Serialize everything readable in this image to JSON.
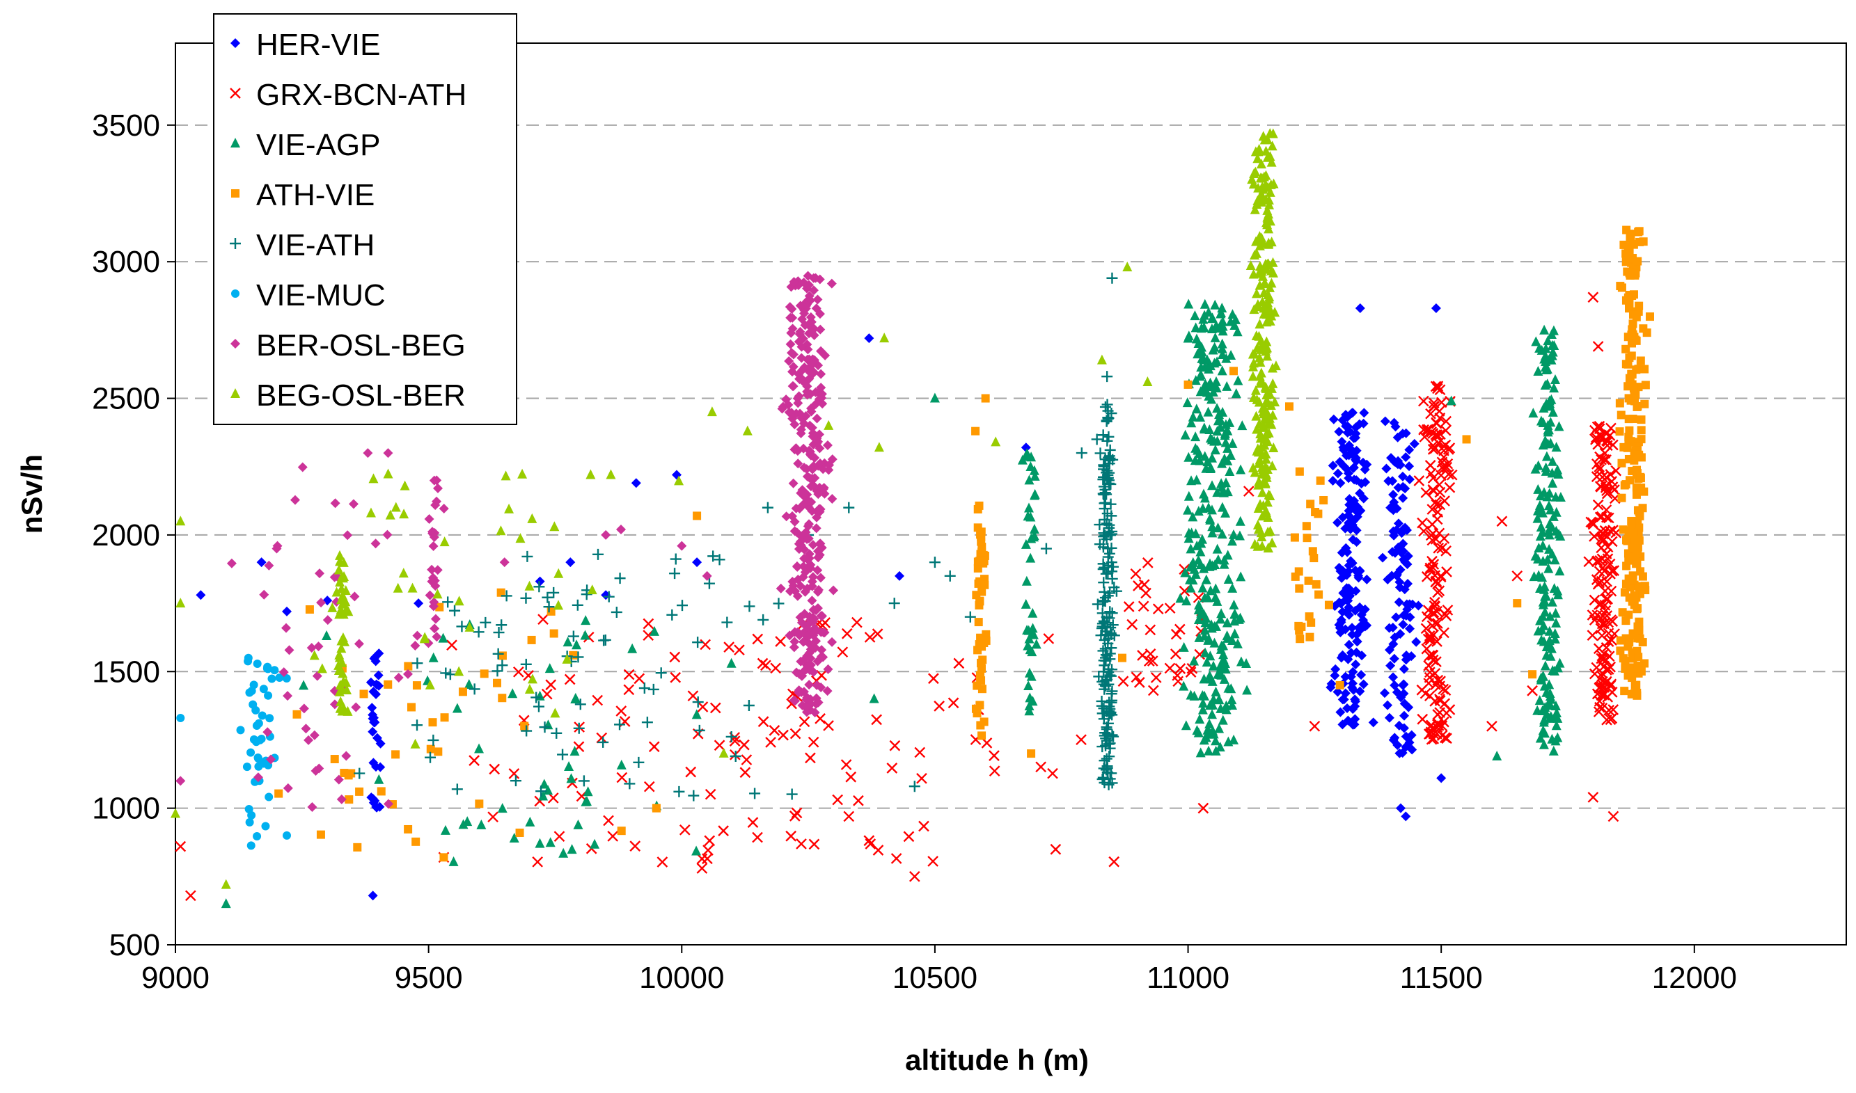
{
  "chart_data": {
    "type": "scatter",
    "title": "",
    "xlabel": "altitude h (m)",
    "ylabel": "nSv/h",
    "xlim": [
      9000,
      12300
    ],
    "ylim": [
      500,
      3800
    ],
    "x_ticks": [
      9000,
      9500,
      10000,
      10500,
      11000,
      11500,
      12000
    ],
    "y_ticks": [
      500,
      1000,
      1500,
      2000,
      2500,
      3000,
      3500
    ],
    "grid": "horizontal-dashed",
    "legend_position": "top-left",
    "series": [
      {
        "name": "HER-VIE",
        "marker": "diamond",
        "color": "#0000ff",
        "clusters": [
          {
            "x_center": 11320,
            "x_spread": 50,
            "y_min": 1300,
            "y_max": 2450,
            "count": 170
          },
          {
            "x_center": 11420,
            "x_spread": 40,
            "y_min": 1200,
            "y_max": 2450,
            "count": 110
          },
          {
            "x_center": 9395,
            "x_spread": 15,
            "y_min": 1000,
            "y_max": 1600,
            "count": 30
          }
        ],
        "points": [
          [
            11340,
            2830
          ],
          [
            11490,
            2830
          ],
          [
            10370,
            2720
          ],
          [
            11420,
            1000
          ],
          [
            11430,
            970
          ],
          [
            9390,
            680
          ],
          [
            9910,
            2190
          ],
          [
            9990,
            2220
          ],
          [
            11500,
            1110
          ],
          [
            9050,
            1780
          ],
          [
            9170,
            1900
          ],
          [
            9220,
            1720
          ],
          [
            9300,
            1760
          ],
          [
            9480,
            1750
          ],
          [
            9720,
            1830
          ],
          [
            9780,
            1900
          ],
          [
            9850,
            1780
          ],
          [
            10030,
            1900
          ],
          [
            10430,
            1850
          ],
          [
            10680,
            2320
          ]
        ]
      },
      {
        "name": "GRX-BCN-ATH",
        "marker": "x",
        "color": "#ff0000",
        "clusters": [
          {
            "x_center": 11490,
            "x_spread": 40,
            "y_min": 1250,
            "y_max": 2550,
            "count": 160
          },
          {
            "x_center": 11820,
            "x_spread": 35,
            "y_min": 1320,
            "y_max": 2400,
            "count": 150
          },
          {
            "x_center": 10100,
            "x_spread": 900,
            "y_min": 800,
            "y_max": 1700,
            "count": 130
          },
          {
            "x_center": 10950,
            "x_spread": 120,
            "y_min": 1400,
            "y_max": 1900,
            "count": 35
          }
        ],
        "points": [
          [
            11800,
            2870
          ],
          [
            11810,
            2690
          ],
          [
            11800,
            1040
          ],
          [
            11840,
            970
          ],
          [
            9030,
            680
          ],
          [
            9530,
            820
          ],
          [
            10460,
            750
          ],
          [
            10040,
            780
          ],
          [
            11030,
            1000
          ],
          [
            9010,
            860
          ],
          [
            10330,
            970
          ],
          [
            11120,
            2160
          ],
          [
            11250,
            1300
          ],
          [
            11600,
            1300
          ],
          [
            11620,
            2050
          ],
          [
            11650,
            1850
          ],
          [
            11680,
            1430
          ]
        ]
      },
      {
        "name": "VIE-AGP",
        "marker": "triangle",
        "color": "#009966",
        "clusters": [
          {
            "x_center": 11050,
            "x_spread": 80,
            "y_min": 1200,
            "y_max": 2850,
            "count": 300
          },
          {
            "x_center": 11710,
            "x_spread": 40,
            "y_min": 1200,
            "y_max": 2750,
            "count": 170
          },
          {
            "x_center": 10690,
            "x_spread": 20,
            "y_min": 1350,
            "y_max": 2300,
            "count": 40
          },
          {
            "x_center": 9700,
            "x_spread": 500,
            "y_min": 800,
            "y_max": 1700,
            "count": 50
          }
        ],
        "points": [
          [
            9100,
            650
          ],
          [
            11090,
            2000
          ],
          [
            11520,
            2490
          ],
          [
            11610,
            1190
          ],
          [
            10500,
            2500
          ],
          [
            10380,
            1400
          ]
        ]
      },
      {
        "name": "ATH-VIE",
        "marker": "square",
        "color": "#ff9900",
        "clusters": [
          {
            "x_center": 11880,
            "x_spread": 35,
            "y_min": 1400,
            "y_max": 3120,
            "count": 230
          },
          {
            "x_center": 10590,
            "x_spread": 15,
            "y_min": 1250,
            "y_max": 2150,
            "count": 50
          },
          {
            "x_center": 11250,
            "x_spread": 60,
            "y_min": 1600,
            "y_max": 2300,
            "count": 25
          },
          {
            "x_center": 9500,
            "x_spread": 450,
            "y_min": 850,
            "y_max": 1800,
            "count": 40
          }
        ],
        "points": [
          [
            10600,
            2500
          ],
          [
            10580,
            2380
          ],
          [
            11090,
            2600
          ],
          [
            11000,
            2550
          ],
          [
            11200,
            2470
          ],
          [
            11650,
            1750
          ],
          [
            11680,
            1490
          ],
          [
            9530,
            820
          ],
          [
            9680,
            910
          ],
          [
            9950,
            1000
          ],
          [
            10030,
            2070
          ],
          [
            10690,
            1200
          ],
          [
            10870,
            1550
          ],
          [
            11300,
            1450
          ],
          [
            11550,
            2350
          ]
        ]
      },
      {
        "name": "VIE-ATH",
        "marker": "plus",
        "color": "#007777",
        "clusters": [
          {
            "x_center": 10840,
            "x_spread": 20,
            "y_min": 1050,
            "y_max": 2500,
            "count": 190
          },
          {
            "x_center": 9800,
            "x_spread": 600,
            "y_min": 1000,
            "y_max": 1950,
            "count": 80
          }
        ],
        "points": [
          [
            10850,
            2940
          ],
          [
            10840,
            2580
          ],
          [
            10460,
            1080
          ],
          [
            10570,
            1700
          ],
          [
            10530,
            1850
          ],
          [
            10170,
            2100
          ],
          [
            10330,
            2100
          ],
          [
            10820,
            2350
          ],
          [
            10790,
            2300
          ],
          [
            10720,
            1950
          ],
          [
            10500,
            1900
          ],
          [
            10250,
            2000
          ],
          [
            10420,
            1750
          ]
        ]
      },
      {
        "name": "VIE-MUC",
        "marker": "circle",
        "color": "#00b0f0",
        "clusters": [
          {
            "x_center": 9170,
            "x_spread": 60,
            "y_min": 860,
            "y_max": 1550,
            "count": 45
          }
        ],
        "points": [
          [
            9010,
            1330
          ],
          [
            9220,
            900
          ]
        ]
      },
      {
        "name": "BER-OSL-BEG",
        "marker": "diamond",
        "color": "#cc3399",
        "clusters": [
          {
            "x_center": 10250,
            "x_spread": 60,
            "y_min": 1350,
            "y_max": 2950,
            "count": 330
          },
          {
            "x_center": 9510,
            "x_spread": 15,
            "y_min": 1550,
            "y_max": 2300,
            "count": 25
          },
          {
            "x_center": 9300,
            "x_spread": 280,
            "y_min": 1000,
            "y_max": 2300,
            "count": 50
          }
        ],
        "points": [
          [
            9380,
            2300
          ],
          [
            9420,
            2300
          ],
          [
            9200,
            1950
          ],
          [
            9850,
            2000
          ],
          [
            9880,
            2020
          ],
          [
            9650,
            1900
          ],
          [
            10000,
            1960
          ],
          [
            10050,
            1850
          ],
          [
            9010,
            1100
          ]
        ]
      },
      {
        "name": "BEG-OSL-BER",
        "marker": "triangle",
        "color": "#99cc00",
        "clusters": [
          {
            "x_center": 11150,
            "x_spread": 35,
            "y_min": 1950,
            "y_max": 3480,
            "count": 220
          },
          {
            "x_center": 9330,
            "x_spread": 15,
            "y_min": 1350,
            "y_max": 1950,
            "count": 40
          },
          {
            "x_center": 9600,
            "x_spread": 550,
            "y_min": 1200,
            "y_max": 2250,
            "count": 40
          }
        ],
        "points": [
          [
            9010,
            2050
          ],
          [
            9010,
            1750
          ],
          [
            9100,
            720
          ],
          [
            9000,
            980
          ],
          [
            10060,
            2450
          ],
          [
            10290,
            2400
          ],
          [
            10400,
            2720
          ],
          [
            10880,
            2980
          ],
          [
            10830,
            2640
          ],
          [
            10920,
            2560
          ],
          [
            10390,
            2320
          ],
          [
            10130,
            2380
          ],
          [
            9820,
            2220
          ],
          [
            9860,
            2220
          ],
          [
            10620,
            2340
          ]
        ]
      }
    ]
  }
}
